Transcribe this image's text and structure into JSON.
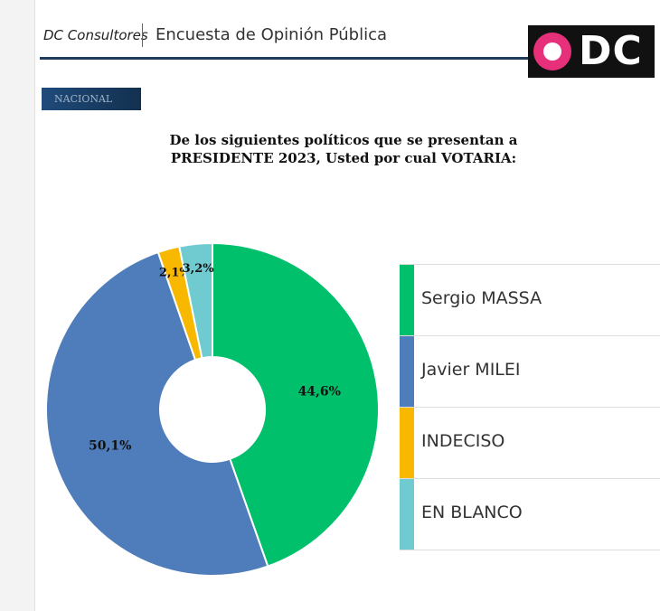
{
  "header": {
    "company": "DC Consultores",
    "title": "Encuesta de Opinión Pública",
    "logo_text": "DC"
  },
  "badge": "NACIONAL",
  "chart_data": {
    "type": "pie",
    "title": "De los siguientes políticos que se presentan a PRESIDENTE 2023, Usted por cual VOTARIA:",
    "title_lines": [
      "De los siguientes políticos que se presentan a",
      "PRESIDENTE 2023, Usted por cual VOTARIA:"
    ],
    "donut": true,
    "legend_position": "right",
    "series": [
      {
        "name": "Sergio MASSA",
        "value": 44.6,
        "label": "44,6%",
        "color": "#00c06b"
      },
      {
        "name": "Javier MILEI",
        "value": 50.1,
        "label": "50,1%",
        "color": "#4f7cba"
      },
      {
        "name": "INDECISO",
        "value": 2.1,
        "label": "2,1%",
        "color": "#f8b800"
      },
      {
        "name": "EN BLANCO",
        "value": 3.2,
        "label": "3,2%",
        "color": "#6fcbd0"
      }
    ]
  }
}
